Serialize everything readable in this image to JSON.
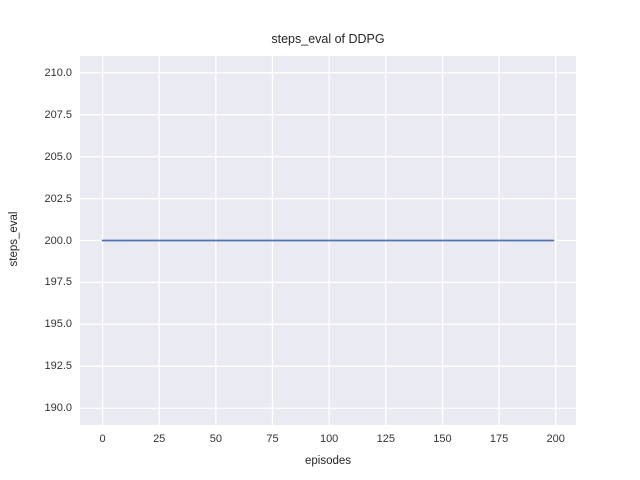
{
  "chart_data": {
    "type": "line",
    "title": "steps_eval of DDPG",
    "xlabel": "episodes",
    "ylabel": "steps_eval",
    "xlim": [
      -9.95,
      208.95
    ],
    "ylim": [
      189,
      211
    ],
    "grid": true,
    "legend": "none",
    "xticks": {
      "values": [
        0,
        25,
        50,
        75,
        100,
        125,
        150,
        175,
        200
      ],
      "labels": [
        "0",
        "25",
        "50",
        "75",
        "100",
        "125",
        "150",
        "175",
        "200"
      ]
    },
    "yticks": {
      "values": [
        190,
        192.5,
        195,
        197.5,
        200,
        202.5,
        205,
        207.5,
        210
      ],
      "labels": [
        "190.0",
        "192.5",
        "195.0",
        "197.5",
        "200.0",
        "202.5",
        "205.0",
        "207.5",
        "210.0"
      ]
    },
    "series": [
      {
        "name": "DDPG",
        "x": [
          0,
          199
        ],
        "y": [
          200,
          200
        ],
        "color": "#4c72b0"
      }
    ],
    "colors": {
      "figure_background": "#ffffff",
      "plot_background": "#eaeaf2",
      "grid": "#ffffff",
      "text": "#262626",
      "line": "#4c72b0"
    }
  }
}
